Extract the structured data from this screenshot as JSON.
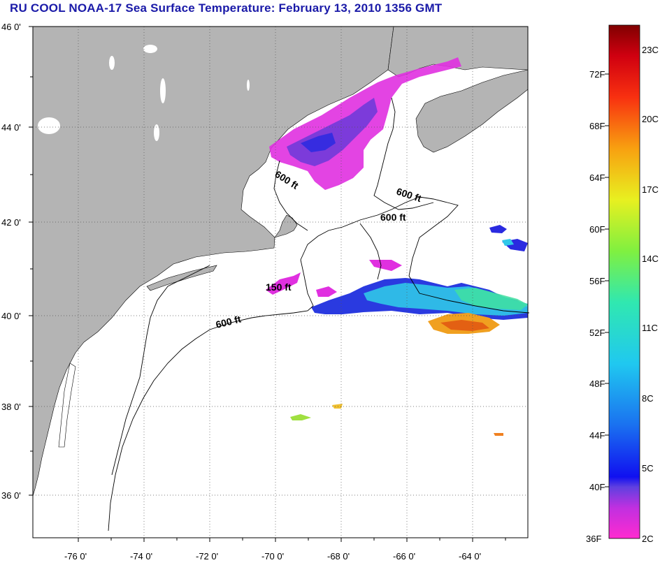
{
  "title": "RU COOL  NOAA-17  Sea Surface Temperature:  February 13, 2010 1356 GMT",
  "map": {
    "lat_labels": [
      "46 0'",
      "44 0'",
      "42 0'",
      "40 0'",
      "38 0'",
      "36 0'"
    ],
    "lon_labels": [
      "-76 0'",
      "-74 0'",
      "-72 0'",
      "-70 0'",
      "-68 0'",
      "-66 0'",
      "-64 0'"
    ],
    "contour_labels": [
      "600 ft",
      "600 ft",
      "600 ft",
      "150 ft",
      "600 ft"
    ],
    "colors": {
      "land": "#b4b4b4",
      "ocean": "#ffffff",
      "title": "#1a1aa8"
    }
  },
  "colorbar": {
    "fahrenheit": [
      "72F",
      "68F",
      "64F",
      "60F",
      "56F",
      "52F",
      "48F",
      "44F",
      "40F",
      "36F"
    ],
    "celsius": [
      "23C",
      "20C",
      "17C",
      "14C",
      "11C",
      "8C",
      "5C",
      "2C"
    ]
  }
}
